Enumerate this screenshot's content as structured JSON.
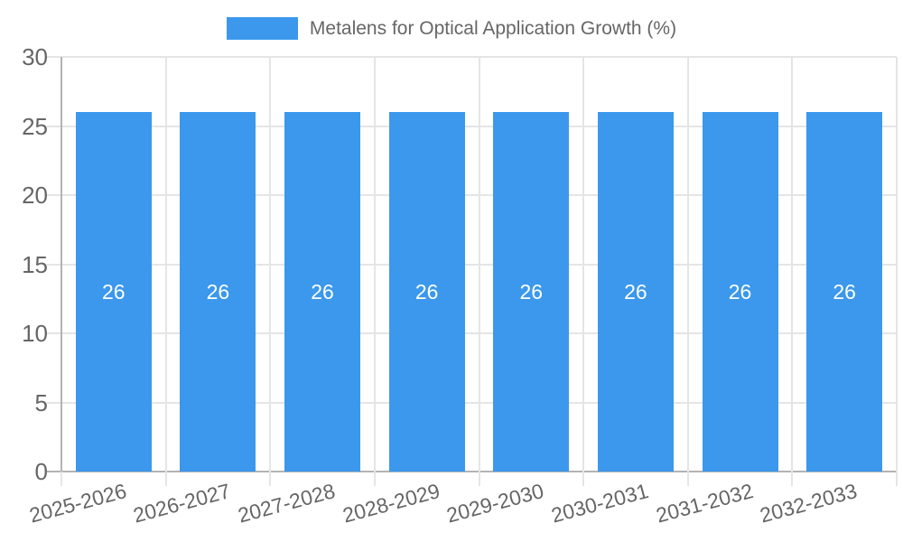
{
  "chart_data": {
    "type": "bar",
    "title": "Metalens for Optical Application Growth (%)",
    "legend": {
      "position": "top",
      "label": "Metalens for Optical Application Growth (%)"
    },
    "categories": [
      "2025-2026",
      "2026-2027",
      "2027-2028",
      "2028-2029",
      "2029-2030",
      "2030-2031",
      "2031-2032",
      "2032-2033"
    ],
    "series": [
      {
        "name": "Metalens for Optical Application Growth (%)",
        "values": [
          26,
          26,
          26,
          26,
          26,
          26,
          26,
          26
        ]
      }
    ],
    "bar_value_labels": [
      "26",
      "26",
      "26",
      "26",
      "26",
      "26",
      "26",
      "26"
    ],
    "xlabel": "",
    "ylabel": "",
    "ylim": [
      0,
      30
    ],
    "yticks": [
      "0",
      "5",
      "10",
      "15",
      "20",
      "25",
      "30"
    ],
    "grid": true,
    "x_tick_rotation_deg": -15,
    "colors": {
      "bar": "#3b98ec",
      "grid_line": "#e5e5e5",
      "axis_line": "#b3b3b3",
      "tick_text": "#666666",
      "bar_label_text": "#ffffff",
      "background": "#ffffff"
    }
  }
}
